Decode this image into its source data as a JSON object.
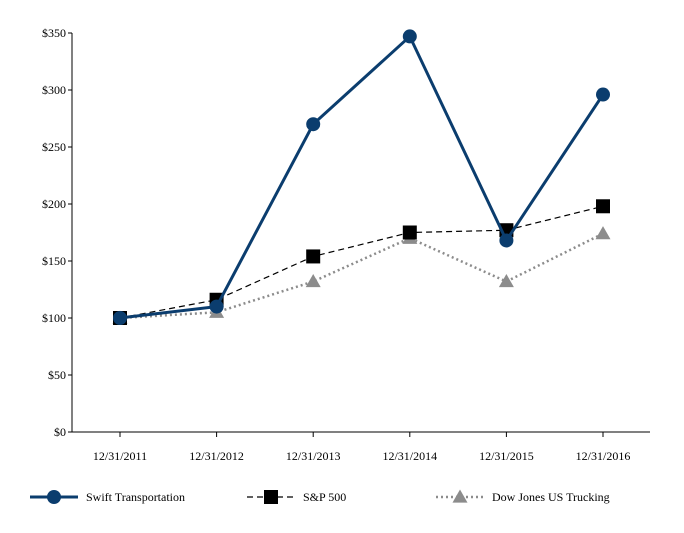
{
  "chart_data": {
    "type": "line",
    "title": "",
    "xlabel": "",
    "ylabel": "",
    "ylim": [
      0,
      350
    ],
    "yticks": [
      0,
      50,
      100,
      150,
      200,
      250,
      300,
      350
    ],
    "ytick_labels": [
      "$0",
      "$50",
      "$100",
      "$150",
      "$200",
      "$250",
      "$300",
      "$350"
    ],
    "categories": [
      "12/31/2011",
      "12/31/2012",
      "12/31/2013",
      "12/31/2014",
      "12/31/2015",
      "12/31/2016"
    ],
    "grid": false,
    "legend_position": "bottom",
    "series": [
      {
        "name": "Swift Transportation",
        "values": [
          100,
          110,
          270,
          347,
          168,
          296
        ],
        "color": "#0b3d6e",
        "line": "solid",
        "marker": "circle"
      },
      {
        "name": "S&P 500",
        "values": [
          100,
          116,
          154,
          175,
          177,
          198
        ],
        "color": "#000000",
        "line": "dashed",
        "marker": "square"
      },
      {
        "name": "Dow Jones US Trucking",
        "values": [
          100,
          105,
          132,
          170,
          132,
          174
        ],
        "color": "#8c8c8c",
        "line": "dotted",
        "marker": "triangle"
      }
    ]
  }
}
